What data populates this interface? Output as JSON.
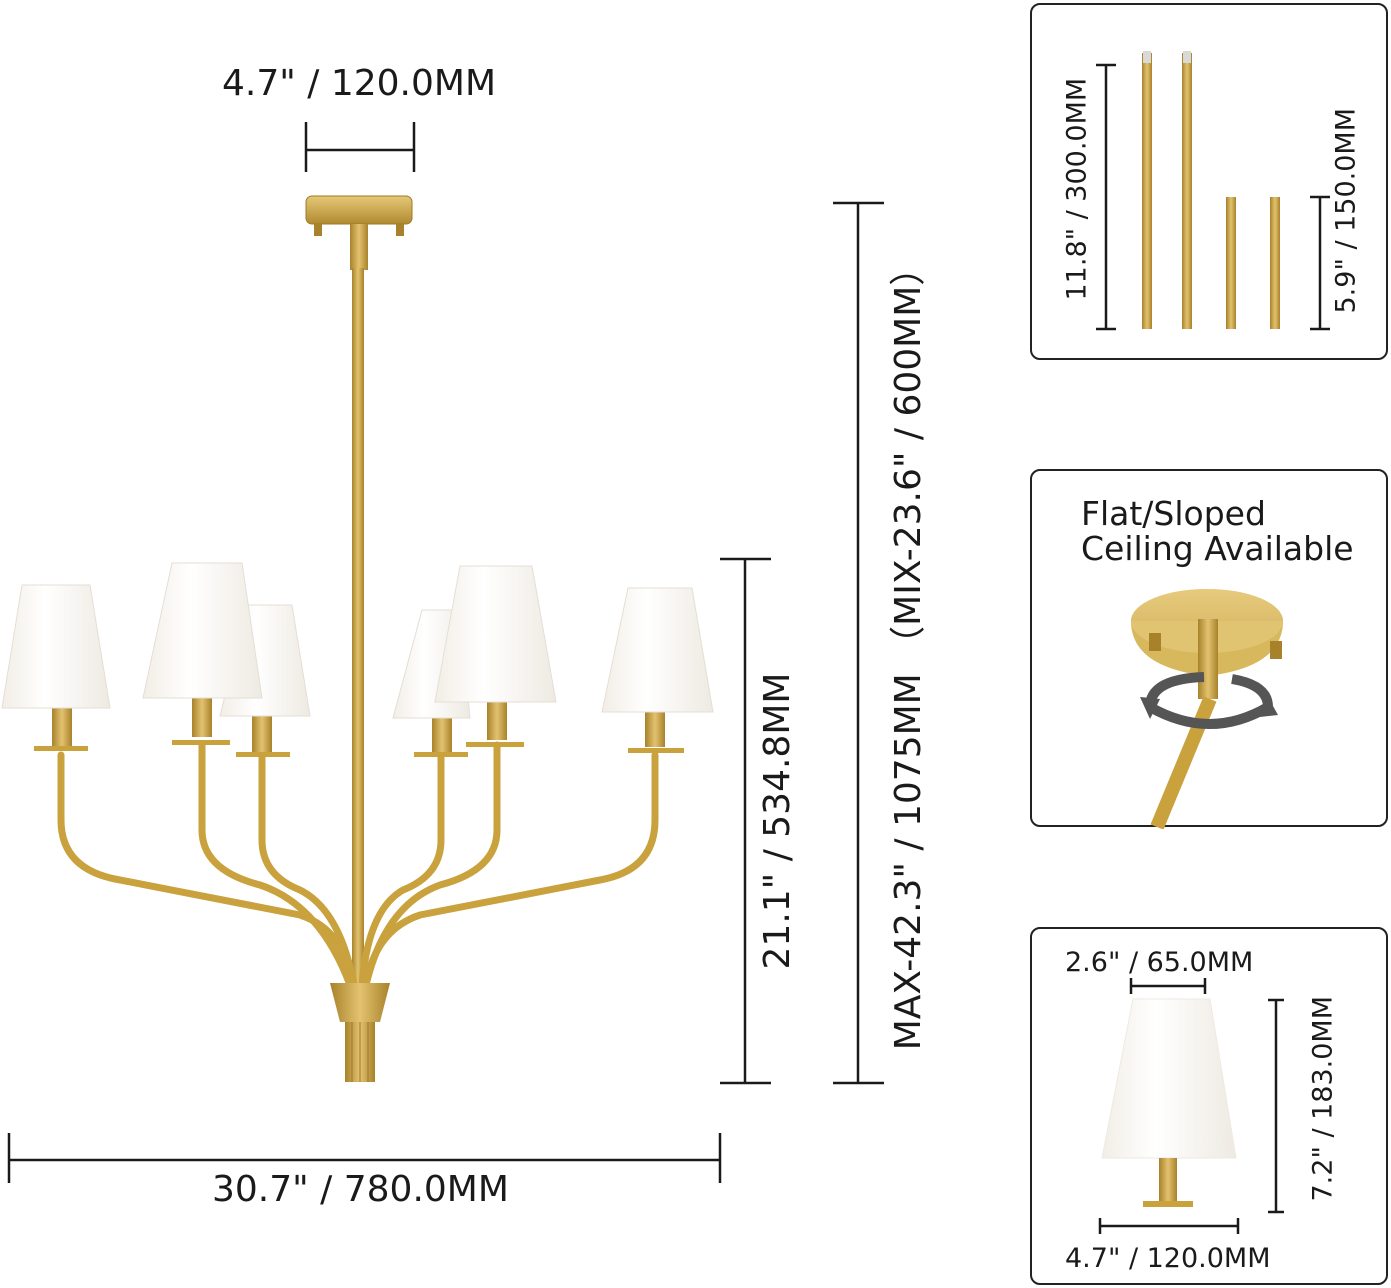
{
  "main": {
    "canopy_width": "4.7\" / 120.0MM",
    "total_width": "30.7\" / 780.0MM",
    "body_height": "21.1\" / 534.8MM",
    "overall_height": "MAX-42.3\" / 1075MM （MIX-23.6\" / 600MM）"
  },
  "rods_panel": {
    "long_rod": "11.8\" / 300.0MM",
    "short_rod": "5.9\" / 150.0MM"
  },
  "ceiling_panel": {
    "line1": "Flat/Sloped",
    "line2": "Ceiling Available"
  },
  "shade_panel": {
    "top_width": "2.6\" / 65.0MM",
    "height": "7.2\" / 183.0MM",
    "bottom_width": "4.7\" / 120.0MM"
  },
  "colors": {
    "gold": "#C9A23E",
    "gold_dark": "#A8822A",
    "shade": "#FBF8F1",
    "line": "#1a1a1a"
  }
}
